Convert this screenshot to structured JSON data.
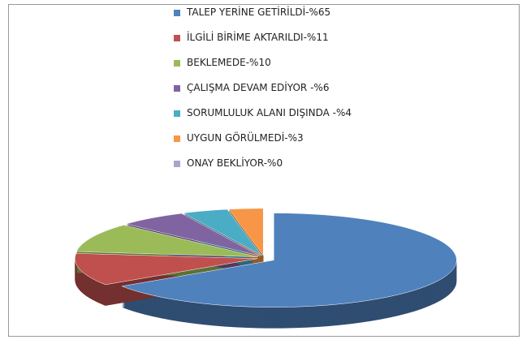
{
  "chart_data": {
    "type": "pie",
    "categories": [
      "TALEP YERİNE GETİRİLDİ-%65",
      "İLGİLİ BİRİME AKTARILDI-%11",
      "BEKLEMEDE-%10",
      "ÇALIŞMA DEVAM EDİYOR -%6",
      "SORUMLULUK ALANI DIŞINDA -%4",
      "UYGUN GÖRÜLMEDİ-%3",
      "ONAY BEKLİYOR-%0"
    ],
    "values": [
      65,
      11,
      10,
      6,
      4,
      3,
      0
    ],
    "colors": [
      "#4f81bd",
      "#c0504d",
      "#9bbb59",
      "#8064a2",
      "#4bacc6",
      "#f79646",
      "#a5a5d0"
    ],
    "legend": "top"
  }
}
